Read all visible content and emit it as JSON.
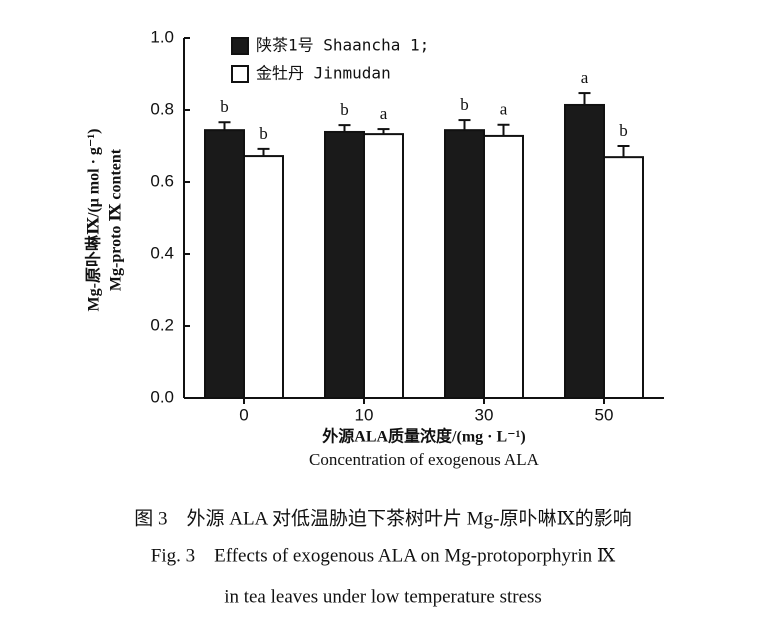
{
  "chart_data": {
    "type": "bar",
    "y_label": "Mg-原卟啉Ⅸ/(μ mol · g⁻¹)",
    "y_label_en": "Mg-proto Ⅸ content",
    "x_label": "外源ALA质量浓度/(mg · L⁻¹)",
    "x_label_en": "Concentration of exogenous ALA",
    "caption_cn": "图 3　外源 ALA 对低温胁迫下茶树叶片 Mg-原卟啉Ⅸ的影响",
    "caption_en_1": "Fig. 3　Effects of exogenous ALA on Mg-protoporphyrin Ⅸ",
    "caption_en_2": "in tea leaves under low temperature stress",
    "categories": [
      "0",
      "10",
      "30",
      "50"
    ],
    "series": [
      {
        "name": "陕茶1号 Shaancha 1;",
        "color": "#1a1a1a",
        "values": [
          0.744,
          0.739,
          0.744,
          0.814
        ],
        "errors": [
          0.022,
          0.019,
          0.028,
          0.033
        ],
        "letters": [
          "b",
          "b",
          "b",
          "a"
        ]
      },
      {
        "name": "金牡丹 Jinmudan",
        "color": "#ffffff",
        "values": [
          0.672,
          0.733,
          0.728,
          0.669
        ],
        "errors": [
          0.02,
          0.014,
          0.031,
          0.031
        ],
        "letters": [
          "b",
          "a",
          "a",
          "b"
        ]
      }
    ],
    "ylim": [
      0,
      1
    ],
    "yticks": [
      {
        "value": 0,
        "label": "0.0"
      },
      0.2,
      0.4,
      0.6,
      0.8,
      {
        "value": 1,
        "label": "1.0"
      }
    ]
  }
}
